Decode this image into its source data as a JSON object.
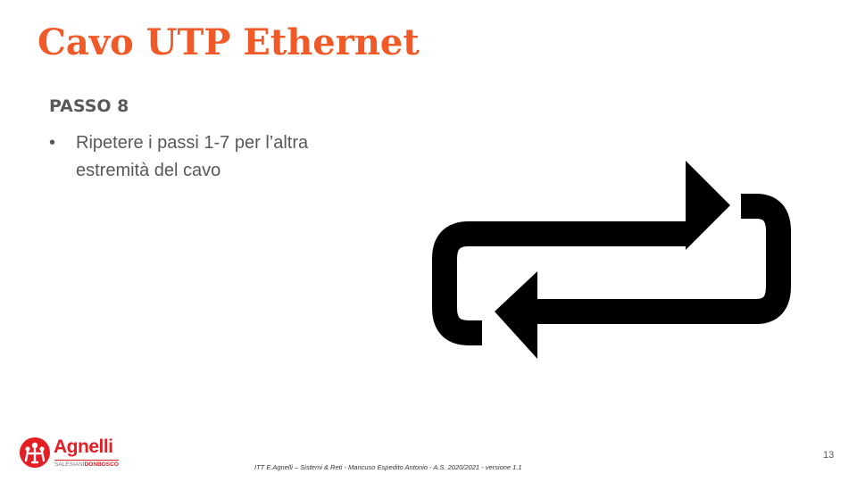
{
  "slide": {
    "title": "Cavo UTP Ethernet",
    "step_heading": "PASSO 8",
    "bullets": [
      {
        "marker": "•",
        "text": "Ripetere i passi 1-7 per l’altra estremità del cavo"
      }
    ],
    "page_number": "13"
  },
  "footer": {
    "text": "ITT E.Agnelli – Sistemi & Reti - Mancuso Espedito Antonio - A.S. 2020/2021 - versione 1.1"
  },
  "logo": {
    "name": "Agnelli",
    "sub_a": "SALESIANI",
    "sub_b": "DONBOSCO",
    "color": "#e31e24"
  },
  "icons": {
    "repeat": "repeat-icon"
  },
  "colors": {
    "title": "#f05a28",
    "body_text": "#595959",
    "icon": "#000000"
  }
}
